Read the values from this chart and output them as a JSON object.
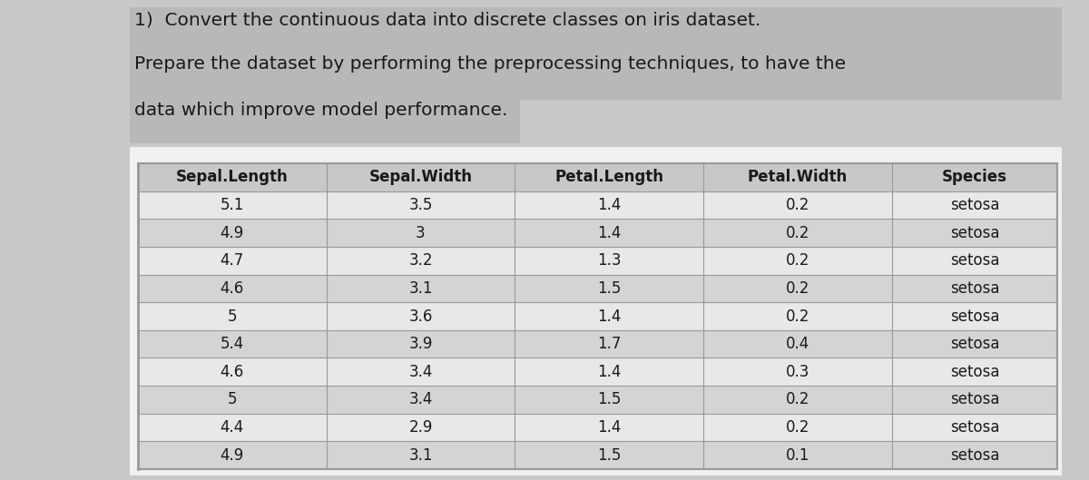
{
  "title_line1": "1)  Convert the continuous data into discrete classes on iris dataset.",
  "title_line2": "Prepare the dataset by performing the preprocessing techniques, to have the",
  "title_line3": "data which improve model performance.",
  "columns": [
    "Sepal.Length",
    "Sepal.Width",
    "Petal.Length",
    "Petal.Width",
    "Species"
  ],
  "rows": [
    [
      "5.1",
      "3.5",
      "1.4",
      "0.2",
      "setosa"
    ],
    [
      "4.9",
      "3",
      "1.4",
      "0.2",
      "setosa"
    ],
    [
      "4.7",
      "3.2",
      "1.3",
      "0.2",
      "setosa"
    ],
    [
      "4.6",
      "3.1",
      "1.5",
      "0.2",
      "setosa"
    ],
    [
      "5",
      "3.6",
      "1.4",
      "0.2",
      "setosa"
    ],
    [
      "5.4",
      "3.9",
      "1.7",
      "0.4",
      "setosa"
    ],
    [
      "4.6",
      "3.4",
      "1.4",
      "0.3",
      "setosa"
    ],
    [
      "5",
      "3.4",
      "1.5",
      "0.2",
      "setosa"
    ],
    [
      "4.4",
      "2.9",
      "1.4",
      "0.2",
      "setosa"
    ],
    [
      "4.9",
      "3.1",
      "1.5",
      "0.1",
      "setosa"
    ]
  ],
  "bg_color": "#c8c8c8",
  "white_panel_color": "#f0f0f0",
  "table_row_light": "#e8e8e8",
  "table_row_dark": "#d4d4d4",
  "header_bg": "#c8c8c8",
  "text_color": "#1a1a1a",
  "border_color": "#999999",
  "title_highlight_color": "#b8b8b8",
  "title_fontsize": 14.5,
  "table_fontsize": 12,
  "header_fontsize": 12
}
